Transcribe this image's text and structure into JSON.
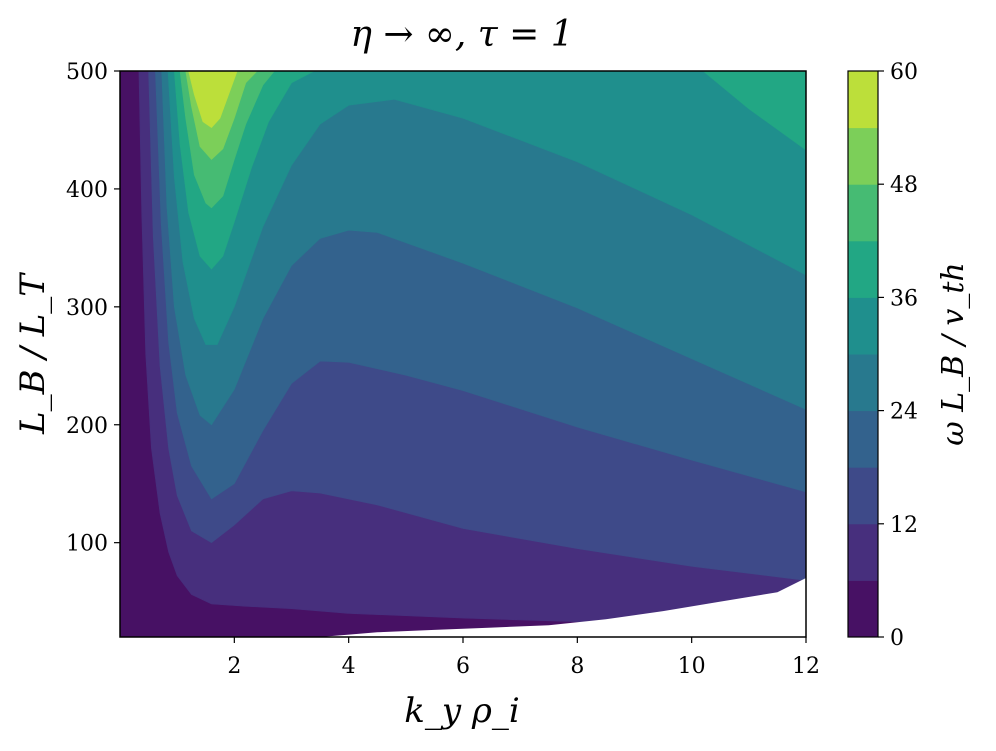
{
  "chart_data": {
    "type": "heatmap",
    "subtype": "filled-contour",
    "title": "η → ∞, τ = 1",
    "xlabel": "k_y ρ_i",
    "ylabel": "L_B / L_T",
    "xlim": [
      0,
      12
    ],
    "ylim": [
      20,
      500
    ],
    "x_ticks": [
      "2",
      "4",
      "6",
      "8",
      "10",
      "12"
    ],
    "x_tick_values": [
      2,
      4,
      6,
      8,
      10,
      12
    ],
    "y_ticks": [
      "100",
      "200",
      "300",
      "400",
      "500"
    ],
    "y_tick_values": [
      100,
      200,
      300,
      400,
      500
    ],
    "colorbar": {
      "label": "ω L_B / v_th",
      "ticks": [
        "0",
        "12",
        "24",
        "36",
        "48",
        "60"
      ],
      "tick_values": [
        0,
        12,
        24,
        36,
        48,
        60
      ],
      "levels": [
        0,
        6,
        12,
        18,
        24,
        30,
        36,
        42,
        48,
        54,
        60
      ],
      "colors": [
        "#471164",
        "#472f7d",
        "#3e4a89",
        "#33628d",
        "#28798e",
        "#1f8f8d",
        "#22a784",
        "#46bb73",
        "#7ccf59",
        "#bcdf3a",
        "#fde725"
      ]
    },
    "contour_boundaries": [
      {
        "level": 6,
        "x": [
          0.33,
          0.38,
          0.45,
          0.55,
          0.7,
          0.85,
          1.0,
          1.25,
          1.6,
          2.2,
          3.0,
          4.0,
          6.0,
          8.0,
          10.0,
          12.0
        ],
        "y": [
          500,
          380,
          260,
          180,
          125,
          92,
          72,
          56,
          48,
          46,
          44,
          40,
          36,
          33,
          31,
          29
        ]
      },
      {
        "level": 12,
        "x": [
          0.5,
          0.58,
          0.7,
          0.85,
          1.0,
          1.25,
          1.6,
          2.0,
          2.5,
          3.0,
          3.5,
          4.5,
          6.0,
          8.0,
          10.0,
          12.0
        ],
        "y": [
          500,
          360,
          250,
          180,
          140,
          110,
          100,
          115,
          137,
          144,
          142,
          132,
          112,
          95,
          80,
          68
        ]
      },
      {
        "level": 18,
        "x": [
          0.62,
          0.72,
          0.85,
          1.0,
          1.25,
          1.6,
          2.0,
          2.5,
          3.0,
          3.5,
          4.0,
          5.0,
          6.0,
          8.0,
          10.0,
          12.0
        ],
        "y": [
          500,
          370,
          270,
          210,
          165,
          137,
          150,
          195,
          235,
          254,
          253,
          242,
          229,
          198,
          170,
          143
        ]
      },
      {
        "level": 24,
        "x": [
          0.73,
          0.82,
          0.95,
          1.15,
          1.4,
          1.6,
          2.0,
          2.5,
          3.0,
          3.5,
          4.0,
          4.5,
          6.0,
          8.0,
          10.0,
          12.0
        ],
        "y": [
          500,
          385,
          300,
          242,
          208,
          200,
          230,
          290,
          335,
          358,
          365,
          363,
          337,
          299,
          256,
          213
        ]
      },
      {
        "level": 30,
        "x": [
          0.84,
          0.95,
          1.1,
          1.3,
          1.5,
          1.7,
          2.0,
          2.5,
          3.0,
          3.5,
          4.0,
          4.8,
          6.0,
          8.0,
          10.0,
          12.0
        ],
        "y": [
          500,
          410,
          338,
          290,
          268,
          268,
          300,
          368,
          420,
          455,
          471,
          476,
          460,
          423,
          378,
          327
        ]
      },
      {
        "level": 36,
        "x": [
          0.95,
          1.05,
          1.2,
          1.4,
          1.6,
          1.8,
          2.0,
          2.3,
          2.6,
          3.0,
          3.4
        ],
        "y": [
          500,
          438,
          380,
          343,
          332,
          343,
          372,
          418,
          457,
          490,
          500
        ]
      },
      {
        "level": 42,
        "x": [
          1.05,
          1.15,
          1.3,
          1.5,
          1.6,
          1.8,
          2.0,
          2.2,
          2.5,
          2.7
        ],
        "y": [
          500,
          460,
          412,
          388,
          384,
          394,
          425,
          455,
          488,
          500
        ]
      },
      {
        "level": 48,
        "x": [
          1.15,
          1.25,
          1.4,
          1.6,
          1.8,
          2.0,
          2.2,
          2.4
        ],
        "y": [
          500,
          470,
          436,
          425,
          434,
          460,
          490,
          500
        ]
      },
      {
        "level": 54,
        "x": [
          1.2,
          1.3,
          1.45,
          1.6,
          1.75,
          1.9,
          2.05,
          2.15
        ],
        "y": [
          500,
          480,
          457,
          452,
          460,
          480,
          500,
          500
        ]
      },
      {
        "level": 36,
        "x": [
          10.2,
          11.0,
          12.0
        ],
        "y": [
          500,
          468,
          433
        ]
      }
    ],
    "blank_region": {
      "x": [
        3.5,
        4.5,
        5.5,
        6.5,
        7.5,
        8.5,
        9.5,
        10.5,
        11.5,
        12.0
      ],
      "y": [
        20,
        24,
        26,
        28,
        30,
        35,
        42,
        50,
        58,
        70
      ]
    }
  }
}
